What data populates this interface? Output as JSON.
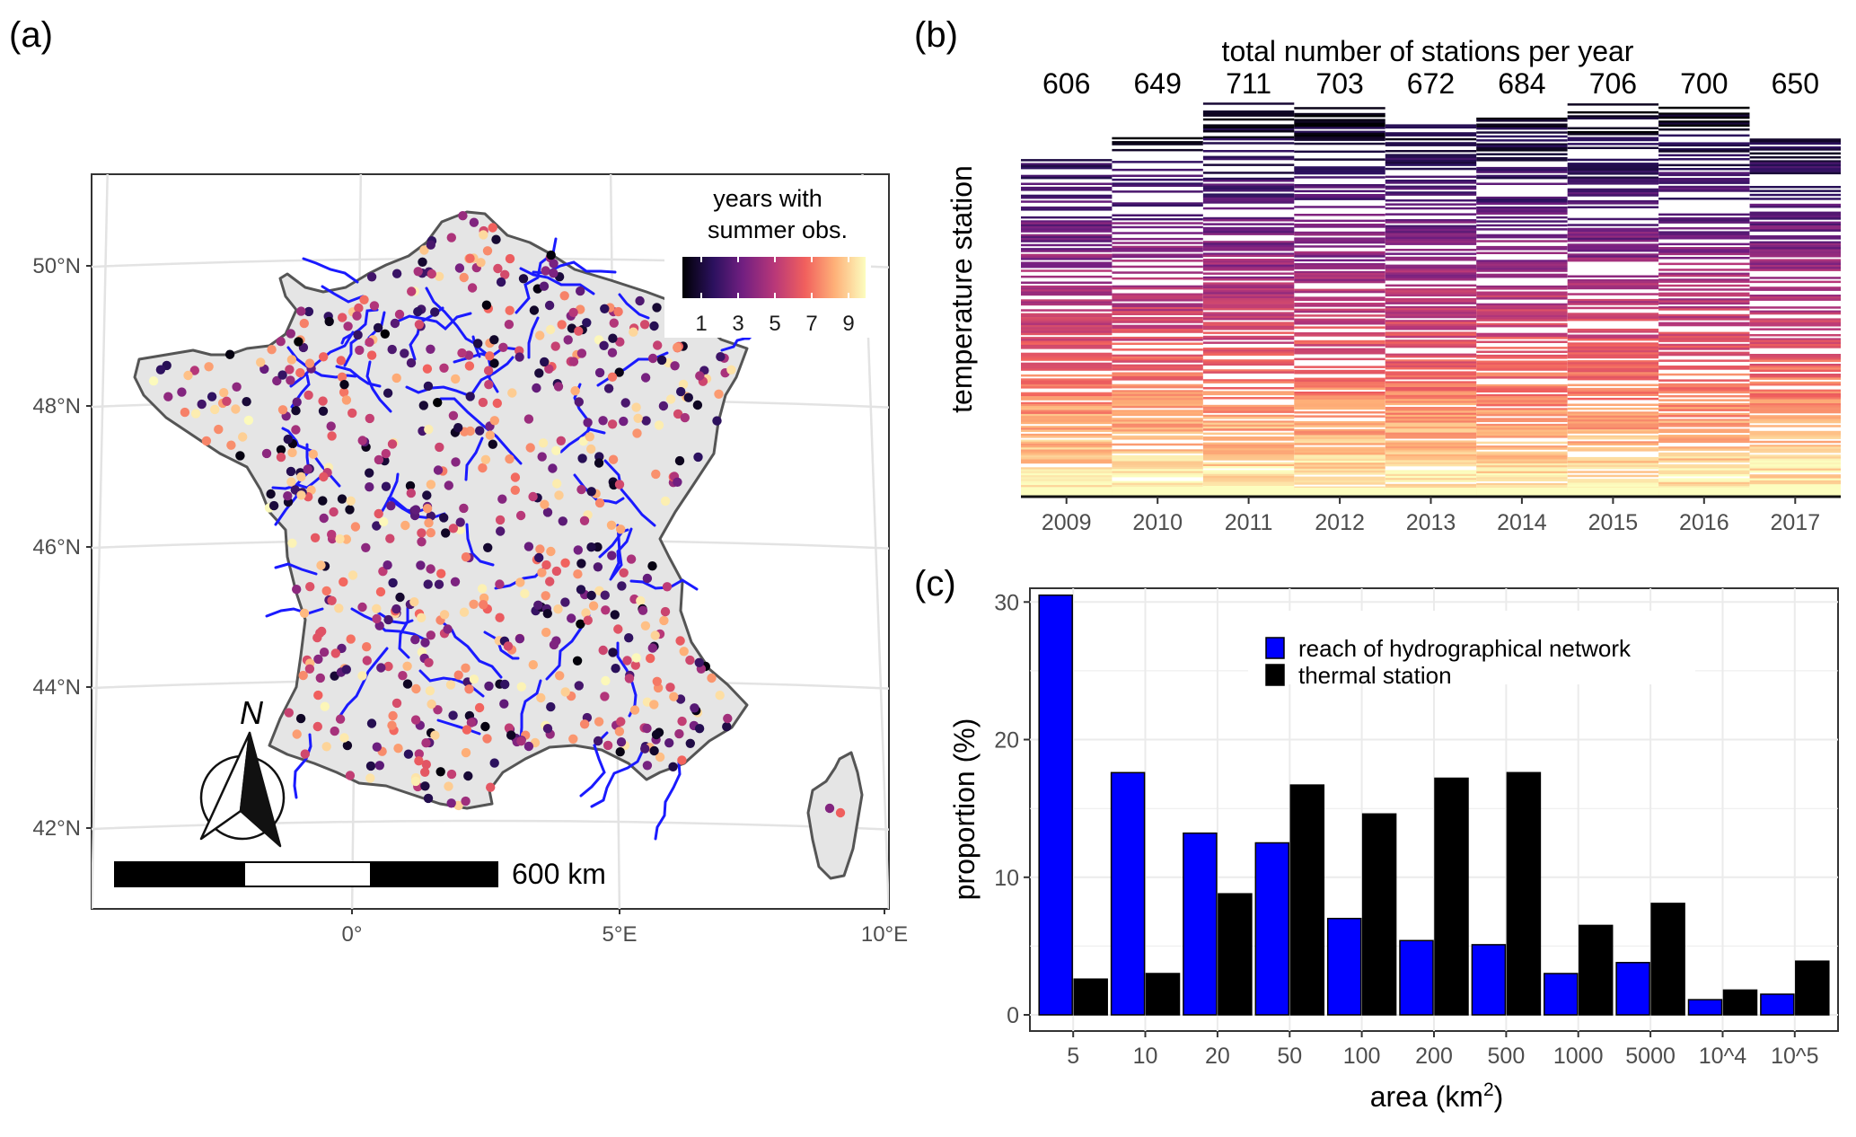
{
  "panels": {
    "a": {
      "label": "(a)"
    },
    "b": {
      "label": "(b)"
    },
    "c": {
      "label": "(c)"
    }
  },
  "map": {
    "lat_ticks": [
      "50°N",
      "48°N",
      "46°N",
      "44°N",
      "42°N"
    ],
    "lon_ticks": [
      "0°",
      "5°E",
      "10°E"
    ],
    "legend_title_1": "years with",
    "legend_title_2": "summer obs.",
    "legend_ticks": [
      "1",
      "3",
      "5",
      "7",
      "9"
    ],
    "north_label": "N",
    "scale_label": "600 km",
    "colors": {
      "land": "#e5e5e5",
      "border": "#555555",
      "rivers": "#1a1aff",
      "palette": [
        "#000004",
        "#2c115f",
        "#721f81",
        "#b73779",
        "#f1605d",
        "#feb078",
        "#fcfdbf"
      ]
    }
  },
  "chart_data": [
    {
      "panel": "b",
      "type": "heatmap",
      "title": "total number of stations per year",
      "ylabel": "temperature station",
      "categories": [
        "2009",
        "2010",
        "2011",
        "2012",
        "2013",
        "2014",
        "2015",
        "2016",
        "2017"
      ],
      "values": [
        606,
        649,
        711,
        703,
        672,
        684,
        706,
        700,
        650
      ],
      "value_labels": [
        "606",
        "649",
        "711",
        "703",
        "672",
        "684",
        "706",
        "700",
        "650"
      ],
      "color_scale": "magma (years with summer obs., 1 to 9)"
    },
    {
      "panel": "c",
      "type": "bar",
      "xlabel": "area (km",
      "xlabel_sup": "2",
      "xlabel_close": ")",
      "ylabel": "proportion (%)",
      "ylim": [
        0,
        31
      ],
      "yticks": [
        "0",
        "10",
        "20",
        "30"
      ],
      "categories": [
        "5",
        "10",
        "20",
        "50",
        "100",
        "200",
        "500",
        "1000",
        "5000",
        "10^4",
        "10^5"
      ],
      "series": [
        {
          "name": "reach of hydrographical network",
          "color": "#0000ff",
          "values": [
            30.5,
            17.6,
            13.2,
            12.5,
            7.0,
            5.4,
            5.1,
            3.0,
            3.8,
            1.1,
            1.5
          ]
        },
        {
          "name": "thermal station",
          "color": "#000000",
          "values": [
            2.6,
            3.0,
            8.8,
            16.7,
            14.6,
            17.2,
            17.6,
            6.5,
            8.1,
            1.8,
            3.9
          ]
        }
      ],
      "legend_position": "top-right"
    }
  ]
}
